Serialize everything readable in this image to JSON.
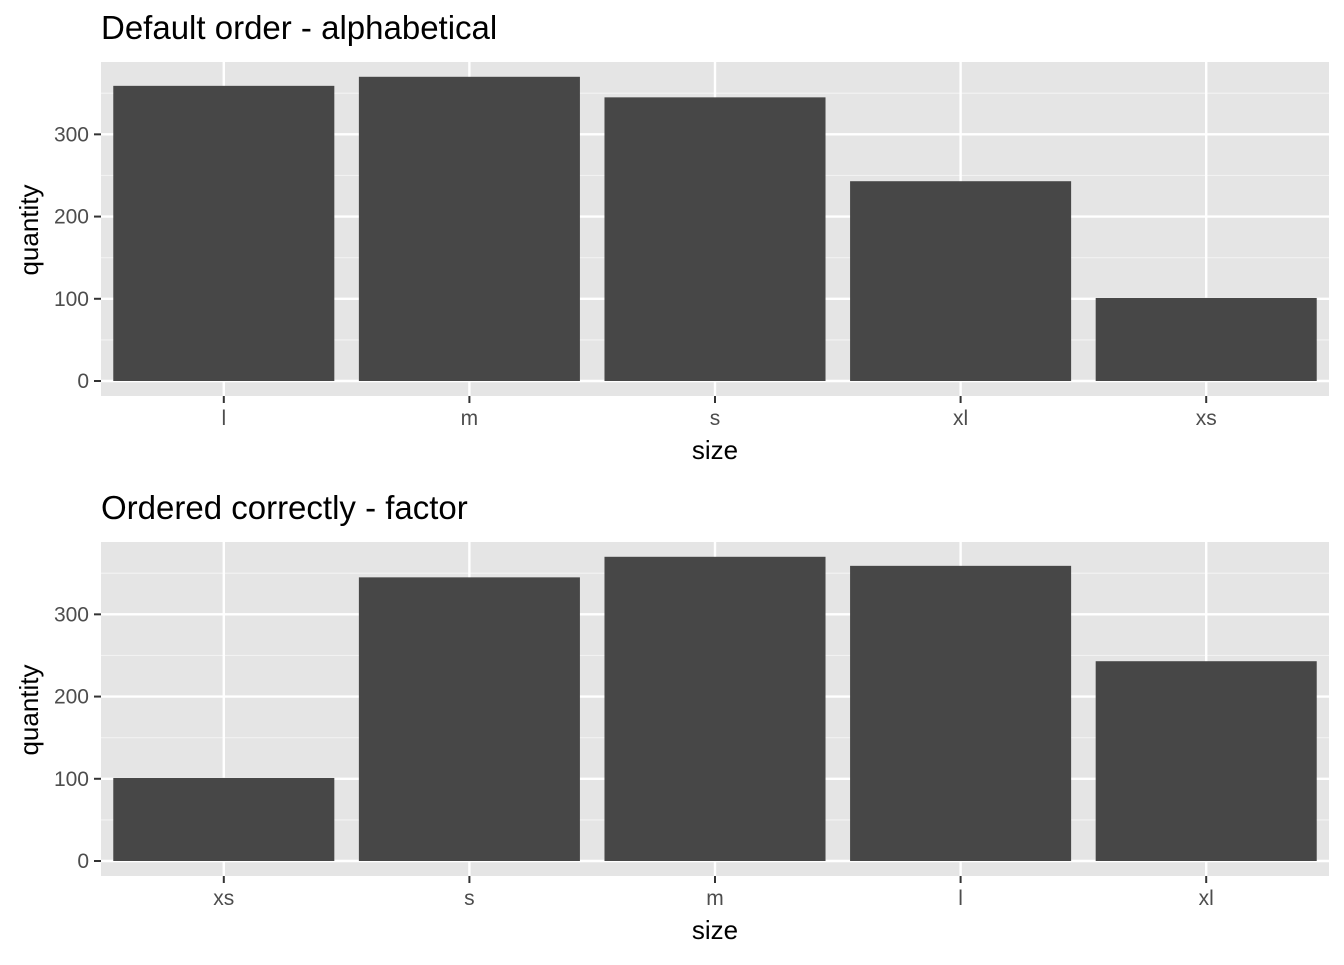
{
  "chart_data": [
    {
      "type": "bar",
      "title": "Default order - alphabetical",
      "xlabel": "size",
      "ylabel": "quantity",
      "categories": [
        "l",
        "m",
        "s",
        "xl",
        "xs"
      ],
      "values": [
        359,
        370,
        345,
        243,
        101
      ],
      "ylim": [
        0,
        388
      ],
      "yticks": [
        0,
        100,
        200,
        300
      ],
      "ytick_labels": [
        "0",
        "100",
        "200",
        "300"
      ],
      "grid": true,
      "bar_color": "#474747",
      "panel_color": "#e5e5e5"
    },
    {
      "type": "bar",
      "title": "Ordered correctly - factor",
      "xlabel": "size",
      "ylabel": "quantity",
      "categories": [
        "xs",
        "s",
        "m",
        "l",
        "xl"
      ],
      "values": [
        101,
        345,
        370,
        359,
        243
      ],
      "ylim": [
        0,
        388
      ],
      "yticks": [
        0,
        100,
        200,
        300
      ],
      "ytick_labels": [
        "0",
        "100",
        "200",
        "300"
      ],
      "grid": true,
      "bar_color": "#474747",
      "panel_color": "#e5e5e5"
    }
  ]
}
